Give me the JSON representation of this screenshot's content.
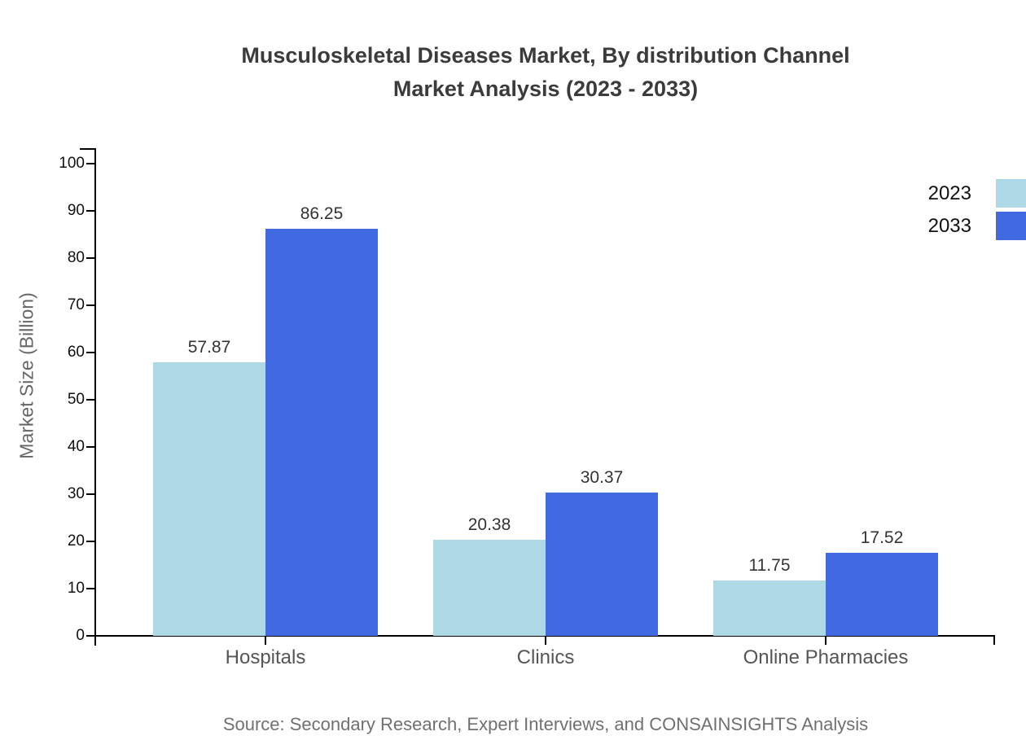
{
  "title": {
    "line1": "Musculoskeletal Diseases Market, By distribution Channel",
    "line2": "Market Analysis (2023 - 2033)"
  },
  "chart_data": {
    "type": "bar",
    "categories": [
      "Hospitals",
      "Clinics",
      "Online Pharmacies"
    ],
    "series": [
      {
        "name": "2023",
        "color": "#ADD8E6",
        "values": [
          57.87,
          20.38,
          11.75
        ]
      },
      {
        "name": "2033",
        "color": "#4169E1",
        "values": [
          86.25,
          30.37,
          17.52
        ]
      }
    ],
    "title": "Musculoskeletal Diseases Market, By distribution Channel Market Analysis (2023 - 2033)",
    "xlabel": "",
    "ylabel": "Market Size (Billion)",
    "ylim": [
      0,
      100
    ],
    "ytick_step": 10,
    "grid": false,
    "legend_position": "top-right",
    "value_labels": true,
    "axis_color": "#000000"
  },
  "source": "Source: Secondary Research, Expert Interviews, and CONSAINSIGHTS Analysis"
}
